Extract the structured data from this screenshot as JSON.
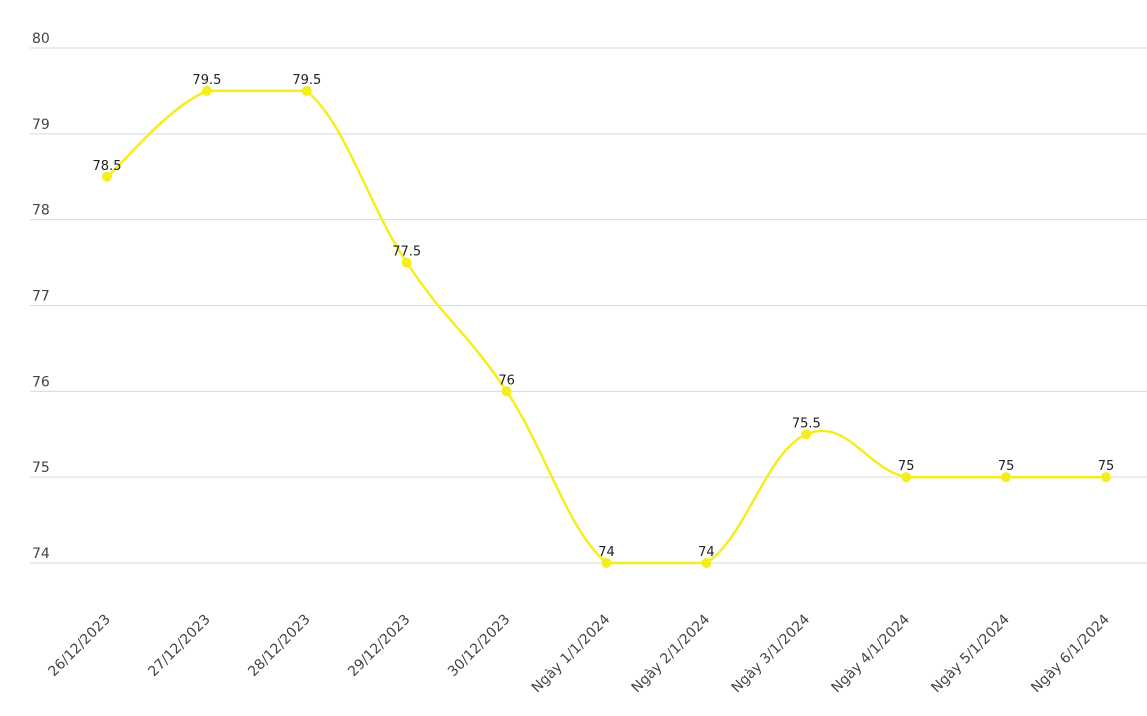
{
  "chart_data": {
    "type": "line",
    "title": "",
    "xlabel": "",
    "ylabel": "",
    "categories": [
      "26/12/2023",
      "27/12/2023",
      "28/12/2023",
      "29/12/2023",
      "30/12/2023",
      "Ngày 1/1/2024",
      "Ngày 2/1/2024",
      "Ngày 3/1/2024",
      "Ngày 4/1/2024",
      "Ngày 5/1/2024",
      "Ngày 6/1/2024"
    ],
    "series": [
      {
        "values": [
          78.5,
          79.5,
          79.5,
          77.5,
          76,
          74,
          74,
          75.5,
          75,
          75,
          75
        ]
      }
    ],
    "data_labels": [
      "78.5",
      "79.5",
      "79.5",
      "77.5",
      "76",
      "74",
      "74",
      "75.5",
      "75",
      "75",
      "75"
    ],
    "ylim": [
      74,
      80
    ],
    "yticks": [
      74,
      75,
      76,
      77,
      78,
      79,
      80
    ],
    "grid": true,
    "line_color": "#f5ee1f",
    "marker_color": "#f5ee1f",
    "smooth": true
  }
}
